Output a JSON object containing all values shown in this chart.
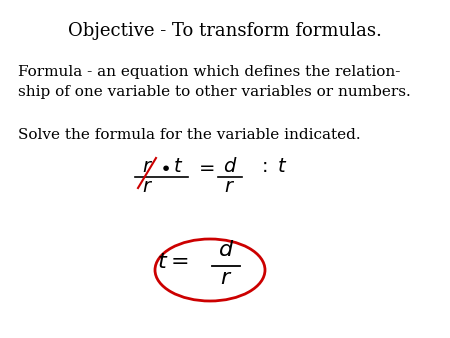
{
  "title": "Objective - To transform formulas.",
  "line1": "Formula - an equation which defines the relation-",
  "line2": "ship of one variable to other variables or numbers.",
  "line3": "Solve the formula for the variable indicated.",
  "bg_color": "#ffffff",
  "text_color": "#000000",
  "red_color": "#cc0000",
  "title_fontsize": 13,
  "body_fontsize": 11,
  "math_fontsize": 13
}
